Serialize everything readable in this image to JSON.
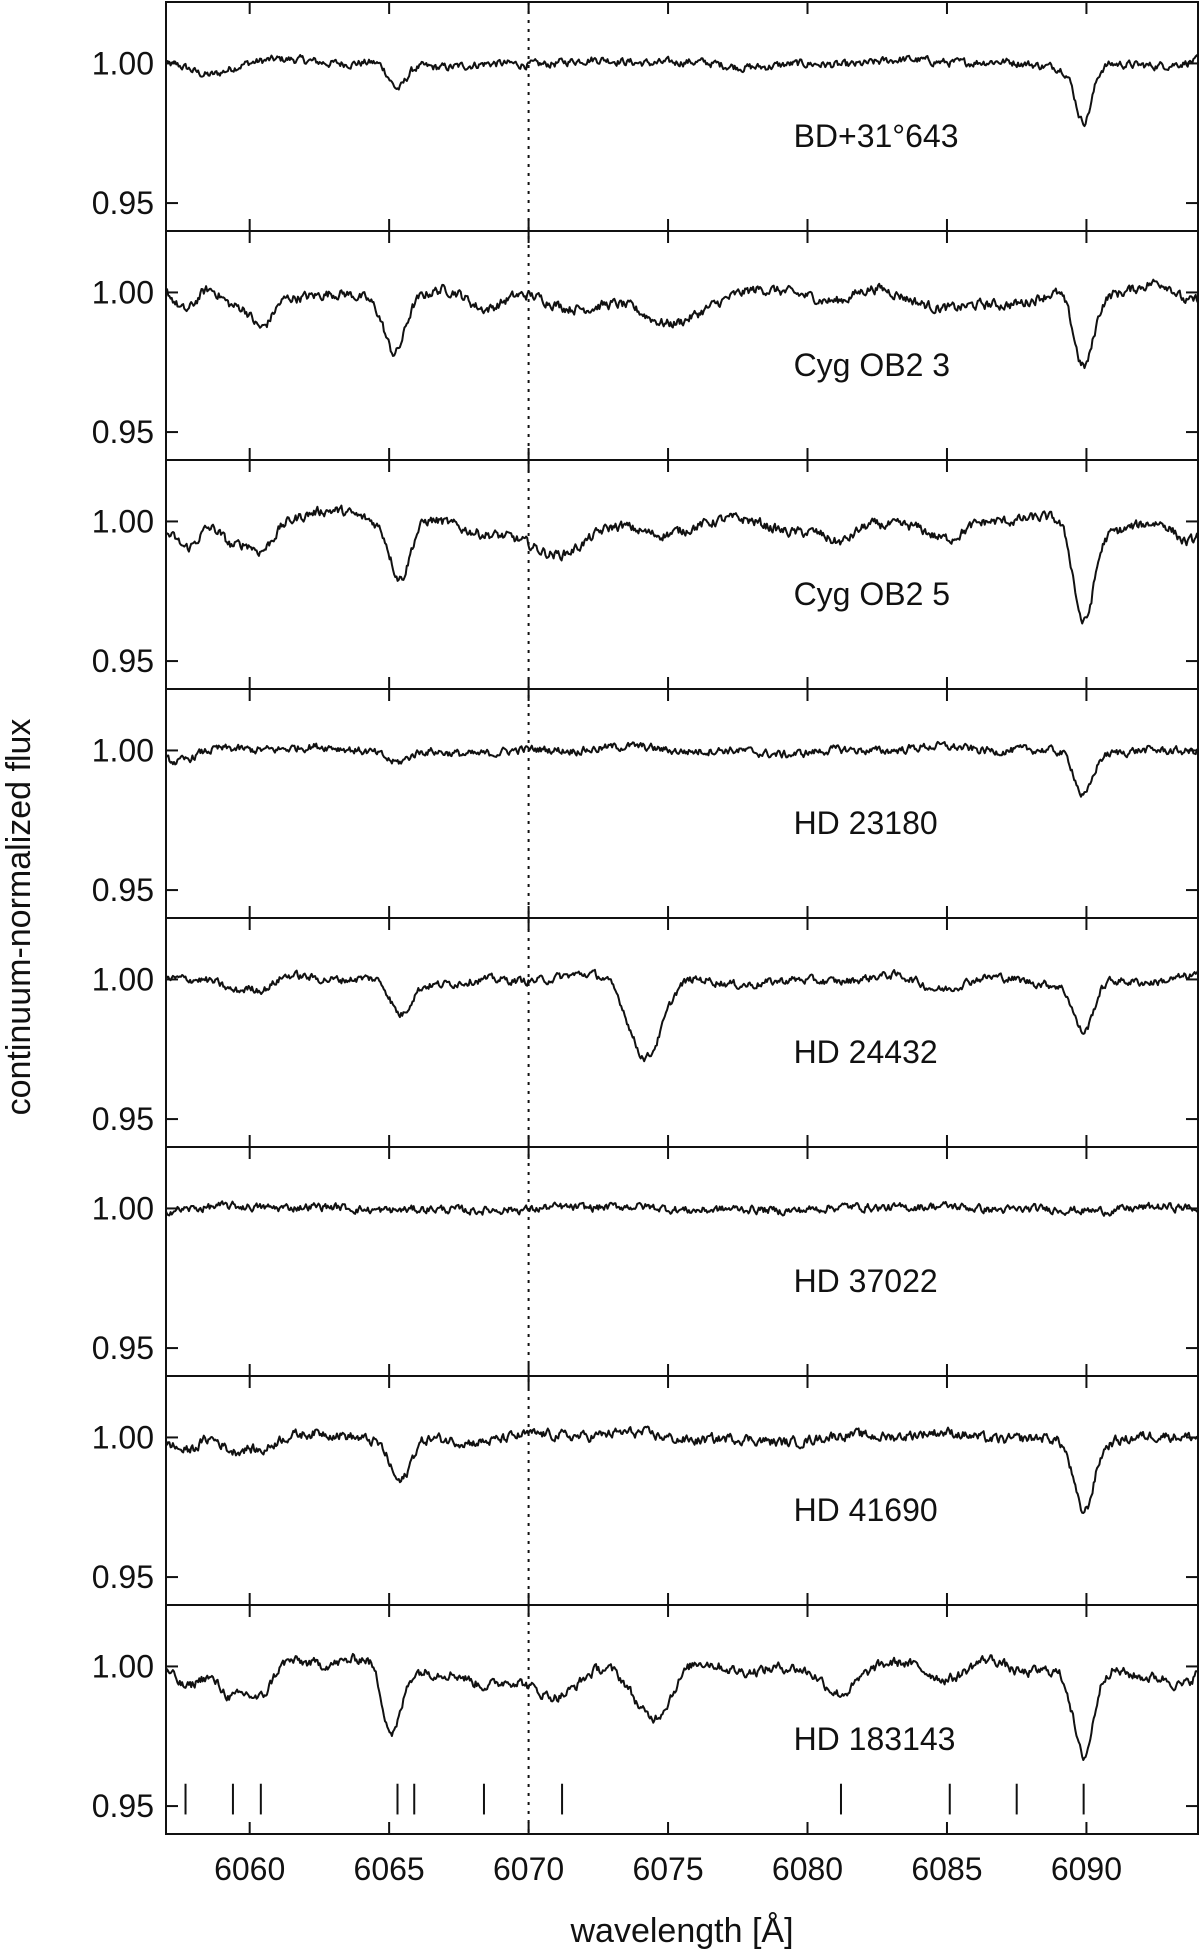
{
  "chart_data": {
    "type": "line",
    "title": "",
    "xlabel": "wavelength [Å]",
    "ylabel": "continuum-normalized flux",
    "xlim": [
      6057,
      6094
    ],
    "ylim": [
      0.94,
      1.022
    ],
    "x_ticks": [
      6060,
      6065,
      6070,
      6075,
      6080,
      6085,
      6090
    ],
    "x_tick_labels": [
      "6060",
      "6065",
      "6070",
      "6075",
      "6080",
      "6085",
      "6090"
    ],
    "y_ticks": [
      0.95,
      1.0
    ],
    "y_tick_labels": [
      "0.95",
      "1.00"
    ],
    "reference_line_x": 6070,
    "line_marks": [
      6057.7,
      6059.4,
      6060.4,
      6065.3,
      6065.9,
      6068.4,
      6071.2,
      6081.2,
      6085.1,
      6087.5,
      6089.9
    ],
    "line_mark_range": [
      0.947,
      0.958
    ],
    "panels": [
      {
        "name": "BD+31°643",
        "continuum": 1.0,
        "noise": 0.0012,
        "undulation": 0.0015,
        "lines": [
          [
            6058.5,
            0.004,
            0.6
          ],
          [
            6065.3,
            0.009,
            0.3
          ],
          [
            6089.9,
            0.02,
            0.3
          ]
        ]
      },
      {
        "name": "Cyg OB2 3",
        "continuum": 1.0,
        "noise": 0.0015,
        "undulation": 0.004,
        "lines": [
          [
            6057.7,
            0.007,
            0.35
          ],
          [
            6059.4,
            0.008,
            0.4
          ],
          [
            6060.4,
            0.014,
            0.4
          ],
          [
            6065.2,
            0.018,
            0.35
          ],
          [
            6068.4,
            0.006,
            0.6
          ],
          [
            6071.2,
            0.008,
            1.0
          ],
          [
            6074.8,
            0.01,
            0.9
          ],
          [
            6081.2,
            0.006,
            0.7
          ],
          [
            6085.1,
            0.006,
            0.9
          ],
          [
            6089.9,
            0.027,
            0.35
          ],
          [
            6093.6,
            0.006,
            0.4
          ]
        ]
      },
      {
        "name": "Cyg OB2 5",
        "continuum": 1.0,
        "noise": 0.0015,
        "undulation": 0.004,
        "lines": [
          [
            6057.8,
            0.006,
            0.35
          ],
          [
            6059.4,
            0.009,
            0.4
          ],
          [
            6060.4,
            0.01,
            0.4
          ],
          [
            6065.4,
            0.02,
            0.35
          ],
          [
            6070.9,
            0.012,
            1.0
          ],
          [
            6074.4,
            0.008,
            0.9
          ],
          [
            6081.2,
            0.007,
            0.5
          ],
          [
            6085.0,
            0.01,
            0.7
          ],
          [
            6089.9,
            0.034,
            0.35
          ],
          [
            6093.6,
            0.006,
            0.4
          ]
        ]
      },
      {
        "name": "HD 23180",
        "continuum": 1.0,
        "noise": 0.0012,
        "undulation": 0.0015,
        "lines": [
          [
            6057.5,
            0.003,
            0.5
          ],
          [
            6065.3,
            0.004,
            0.4
          ],
          [
            6089.9,
            0.015,
            0.3
          ]
        ]
      },
      {
        "name": "HD 24432",
        "continuum": 1.0,
        "noise": 0.0012,
        "undulation": 0.002,
        "lines": [
          [
            6059.5,
            0.004,
            0.4
          ],
          [
            6060.5,
            0.005,
            0.4
          ],
          [
            6065.4,
            0.012,
            0.35
          ],
          [
            6074.2,
            0.028,
            0.6
          ],
          [
            6084.7,
            0.004,
            0.7
          ],
          [
            6089.9,
            0.018,
            0.35
          ]
        ]
      },
      {
        "name": "HD 37022",
        "continuum": 1.0,
        "noise": 0.0012,
        "undulation": 0.001,
        "lines": [
          [
            6070.0,
            0.001,
            0.5
          ]
        ]
      },
      {
        "name": "HD 41690",
        "continuum": 1.0,
        "noise": 0.0015,
        "undulation": 0.002,
        "lines": [
          [
            6057.8,
            0.004,
            0.4
          ],
          [
            6059.4,
            0.006,
            0.4
          ],
          [
            6060.4,
            0.005,
            0.4
          ],
          [
            6065.4,
            0.015,
            0.35
          ],
          [
            6089.9,
            0.025,
            0.35
          ]
        ]
      },
      {
        "name": "HD 183143",
        "continuum": 1.0,
        "noise": 0.0015,
        "undulation": 0.004,
        "lines": [
          [
            6057.7,
            0.006,
            0.35
          ],
          [
            6059.4,
            0.008,
            0.4
          ],
          [
            6060.4,
            0.012,
            0.4
          ],
          [
            6065.1,
            0.026,
            0.35
          ],
          [
            6068.4,
            0.006,
            0.6
          ],
          [
            6071.2,
            0.01,
            0.8
          ],
          [
            6074.5,
            0.02,
            0.7
          ],
          [
            6081.2,
            0.006,
            0.5
          ],
          [
            6085.1,
            0.005,
            0.7
          ],
          [
            6087.5,
            0.004,
            0.5
          ],
          [
            6089.9,
            0.032,
            0.35
          ],
          [
            6093.5,
            0.006,
            0.4
          ]
        ]
      }
    ]
  }
}
